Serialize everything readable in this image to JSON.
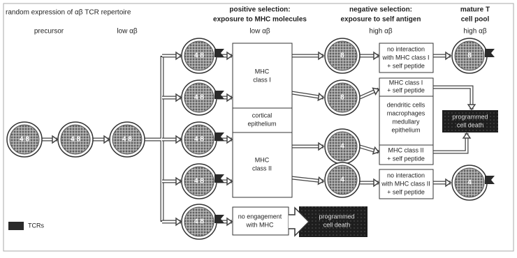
{
  "header": {
    "title": "random expression of αβ TCR repertoire"
  },
  "columns": [
    {
      "title": [
        "precursor"
      ]
    },
    {
      "title": [
        "low αβ"
      ]
    },
    {
      "title": [
        "positive selection:",
        "exposure to MHC molecules"
      ],
      "subtitle": "low αβ"
    },
    {
      "title": [
        "negative selection:",
        "exposure to self antigen"
      ],
      "subtitle": "high αβ"
    },
    {
      "title": [
        "mature T",
        "cell pool"
      ],
      "subtitle": "high αβ"
    }
  ],
  "cells": {
    "precursor": [
      "4 8",
      "4 8",
      "4 8"
    ],
    "positive": [
      "4 8",
      "4 8",
      "4 8",
      "4 8",
      "4 8"
    ],
    "negative": [
      "8",
      "8",
      "4",
      "4"
    ],
    "mature": [
      "8",
      "4"
    ]
  },
  "boxes": {
    "mhc_class_1": [
      "MHC",
      "class I"
    ],
    "cortical": [
      "cortical",
      "epithelium"
    ],
    "mhc_class_2": [
      "MHC",
      "class II"
    ],
    "no_engagement": [
      "no engagement",
      "with MHC"
    ],
    "death_left": [
      "programmed",
      "cell death"
    ],
    "no_interaction_1": [
      "no interaction",
      "with MHC class I",
      "+ self peptide"
    ],
    "self_1": [
      "MHC class I",
      "+ self peptide"
    ],
    "apc": [
      "dendritic cells",
      "macrophages",
      "medullary",
      "epithelium"
    ],
    "self_2": [
      "MHC class II",
      "+ self peptide"
    ],
    "no_interaction_2": [
      "no interaction",
      "with MHC class II",
      "+ self peptide"
    ],
    "death_right": [
      "programmed",
      "cell death"
    ]
  },
  "legend": {
    "label": "TCRs"
  }
}
